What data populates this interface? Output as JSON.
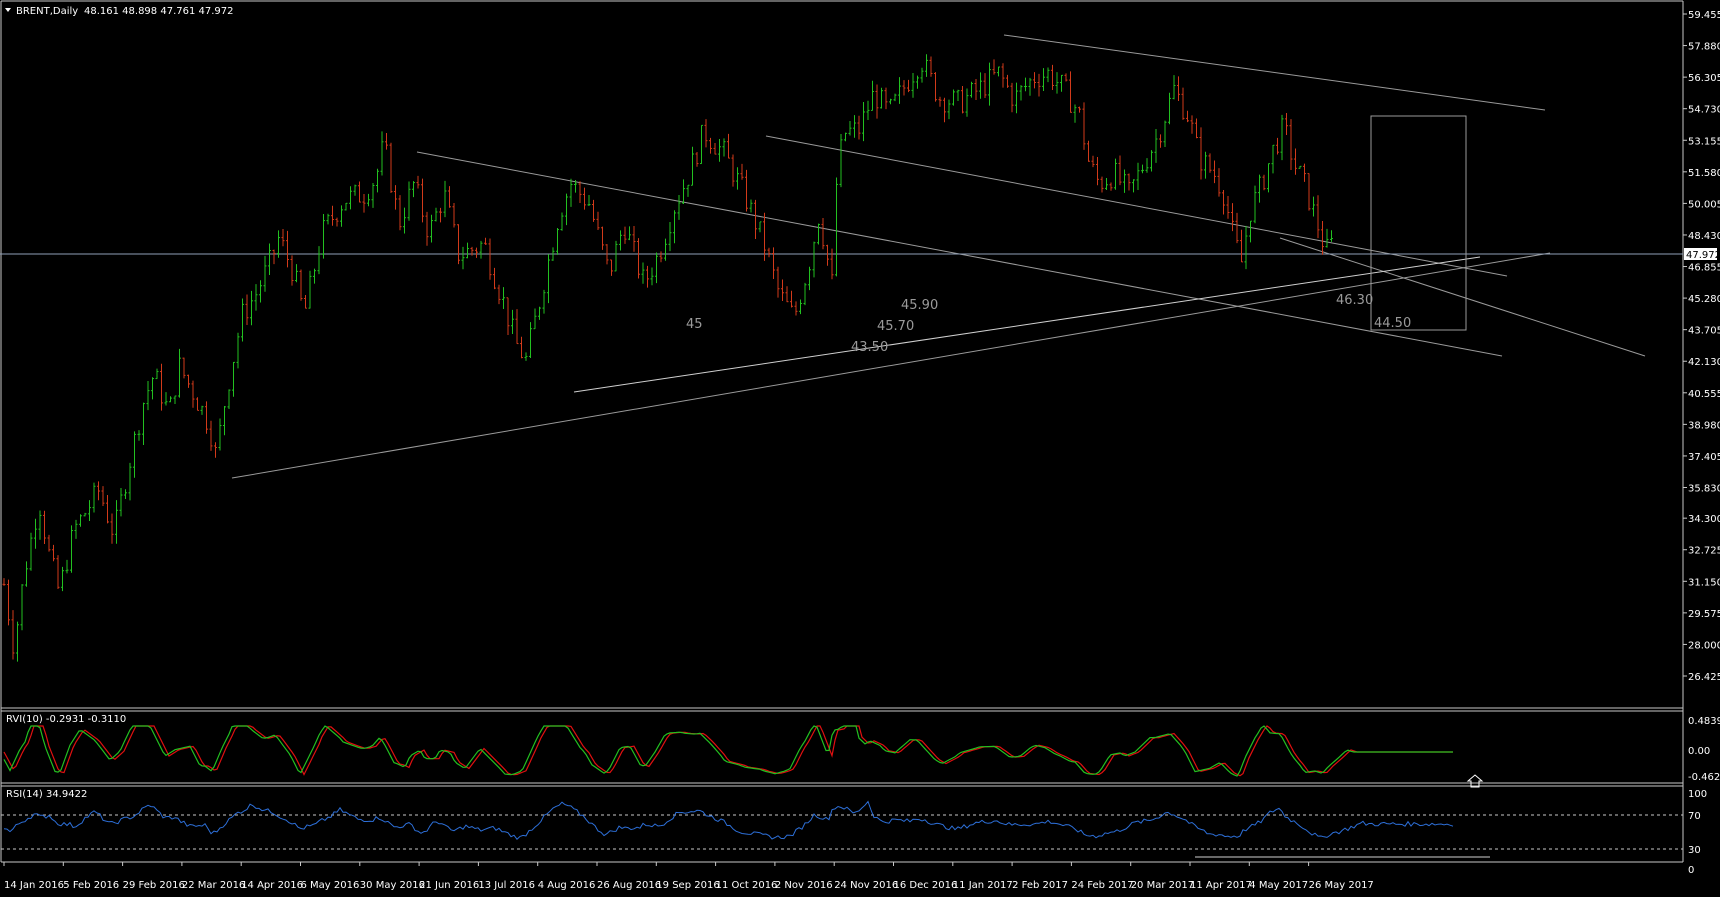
{
  "colors": {
    "background": "#000000",
    "up": "#22c020",
    "down": "#d23a1a",
    "grid": "#c8c8c8",
    "trendline": "#9a9a9a",
    "rvi_main": "#22c020",
    "rvi_signal": "#e01010",
    "rsi": "#2d6fd8"
  },
  "header": {
    "symbol_label": "BRENT,Daily",
    "ohlc_label": "48.161 48.898 47.761 47.972"
  },
  "price_axis": {
    "ticks": [
      "59.455",
      "57.880",
      "56.305",
      "54.730",
      "53.155",
      "51.580",
      "50.005",
      "48.430",
      "46.855",
      "45.280",
      "43.705",
      "42.130",
      "40.555",
      "38.980",
      "37.405",
      "35.830",
      "34.300",
      "32.725",
      "31.150",
      "29.575",
      "28.000",
      "26.425"
    ],
    "current_price_label": "47.972"
  },
  "time_axis": {
    "ticks": [
      "14 Jan 2016",
      "5 Feb 2016",
      "29 Feb 2016",
      "22 Mar 2016",
      "14 Apr 2016",
      "6 May 2016",
      "30 May 2016",
      "21 Jun 2016",
      "13 Jul 2016",
      "4 Aug 2016",
      "26 Aug 2016",
      "19 Sep 2016",
      "11 Oct 2016",
      "2 Nov 2016",
      "24 Nov 2016",
      "16 Dec 2016",
      "11 Jan 2017",
      "2 Feb 2017",
      "24 Feb 2017",
      "20 Mar 2017",
      "11 Apr 2017",
      "4 May 2017",
      "26 May 2017"
    ]
  },
  "annotations": [
    "45",
    "43.50",
    "45.70",
    "45.90",
    "46.30",
    "44.50"
  ],
  "rvi_panel": {
    "title": "RVI(10) -0.2931 -0.3110",
    "ticks": [
      "0.4839",
      "0.00",
      "-0.4622"
    ]
  },
  "rsi_panel": {
    "title": "RSI(14) 34.9422",
    "ticks": [
      "100",
      "70",
      "30",
      "0"
    ]
  },
  "chart_data": {
    "type": "candlestick",
    "title": "BRENT,Daily",
    "ylim": [
      26.425,
      59.455
    ],
    "keypoints": [
      [
        0,
        31.0
      ],
      [
        10,
        27.8
      ],
      [
        20,
        31.5
      ],
      [
        35,
        35.2
      ],
      [
        45,
        32.5
      ],
      [
        55,
        30.6
      ],
      [
        70,
        33.7
      ],
      [
        95,
        35.7
      ],
      [
        110,
        33.5
      ],
      [
        125,
        37.0
      ],
      [
        140,
        40.2
      ],
      [
        150,
        41.5
      ],
      [
        165,
        39.5
      ],
      [
        175,
        41.9
      ],
      [
        190,
        40.5
      ],
      [
        205,
        39.0
      ],
      [
        212,
        37.4
      ],
      [
        222,
        40.5
      ],
      [
        238,
        44.4
      ],
      [
        252,
        45.5
      ],
      [
        268,
        47.3
      ],
      [
        275,
        48.3
      ],
      [
        290,
        46.5
      ],
      [
        300,
        44.4
      ],
      [
        318,
        48.5
      ],
      [
        340,
        50.2
      ],
      [
        360,
        50.5
      ],
      [
        372,
        51.3
      ],
      [
        380,
        53.0
      ],
      [
        395,
        49.0
      ],
      [
        410,
        51.0
      ],
      [
        425,
        48.5
      ],
      [
        440,
        50.5
      ],
      [
        455,
        47.4
      ],
      [
        480,
        48.0
      ],
      [
        500,
        45.0
      ],
      [
        512,
        43.0
      ],
      [
        522,
        42.2
      ],
      [
        535,
        45.0
      ],
      [
        555,
        49.5
      ],
      [
        567,
        51.0
      ],
      [
        585,
        50.0
      ],
      [
        605,
        46.5
      ],
      [
        620,
        49.0
      ],
      [
        640,
        46.0
      ],
      [
        655,
        47.5
      ],
      [
        670,
        49.8
      ],
      [
        685,
        51.5
      ],
      [
        700,
        53.6
      ],
      [
        720,
        52.5
      ],
      [
        740,
        50.5
      ],
      [
        760,
        48.0
      ],
      [
        775,
        45.5
      ],
      [
        790,
        44.3
      ],
      [
        805,
        47.0
      ],
      [
        815,
        49.5
      ],
      [
        828,
        46.0
      ],
      [
        833,
        51.5
      ],
      [
        840,
        53.5
      ],
      [
        855,
        53.7
      ],
      [
        870,
        55.5
      ],
      [
        885,
        54.5
      ],
      [
        900,
        55.8
      ],
      [
        917,
        57.2
      ],
      [
        935,
        55.3
      ],
      [
        955,
        55.0
      ],
      [
        975,
        55.7
      ],
      [
        995,
        56.5
      ],
      [
        1010,
        55.2
      ],
      [
        1030,
        56.3
      ],
      [
        1045,
        56.5
      ],
      [
        1060,
        55.7
      ],
      [
        1075,
        54.5
      ],
      [
        1085,
        52.0
      ],
      [
        1095,
        51.0
      ],
      [
        1110,
        51.5
      ],
      [
        1125,
        50.5
      ],
      [
        1140,
        52.0
      ],
      [
        1155,
        53.5
      ],
      [
        1170,
        55.7
      ],
      [
        1185,
        54.3
      ],
      [
        1195,
        52.3
      ],
      [
        1210,
        51.5
      ],
      [
        1220,
        50.5
      ],
      [
        1230,
        48.2
      ],
      [
        1238,
        47.0
      ],
      [
        1245,
        49.5
      ],
      [
        1258,
        51.0
      ],
      [
        1270,
        52.8
      ],
      [
        1280,
        53.8
      ],
      [
        1290,
        52.0
      ],
      [
        1300,
        51.0
      ],
      [
        1312,
        49.2
      ],
      [
        1322,
        47.6
      ],
      [
        1328,
        47.97
      ]
    ]
  }
}
